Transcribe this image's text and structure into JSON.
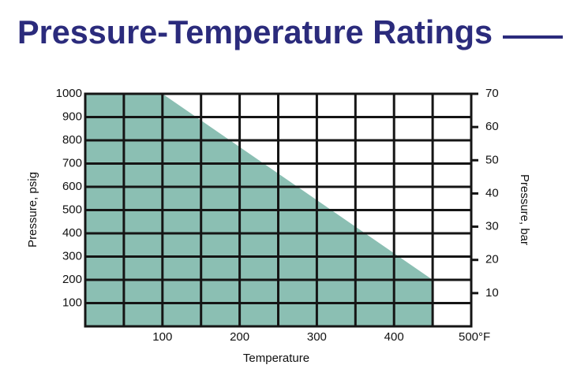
{
  "chart_data": {
    "type": "area",
    "title": "Pressure-Temperature Ratings",
    "x_label": "Temperature",
    "y_label": "Pressure, psig",
    "y2_label": "Pressure, bar",
    "series": [
      {
        "color": "#8bbfb3",
        "x": [
          0,
          100,
          450
        ],
        "values": [
          1000,
          1000,
          200
        ]
      }
    ],
    "xlim": [
      0,
      500
    ],
    "xticks": [
      100,
      200,
      300,
      400,
      {
        "value": 500,
        "label": "500°F"
      }
    ],
    "xgrid": [
      0,
      50,
      100,
      150,
      200,
      250,
      300,
      350,
      400,
      450,
      500
    ],
    "ylim": [
      0,
      1000
    ],
    "yticks": [
      100,
      200,
      300,
      400,
      500,
      600,
      700,
      800,
      900,
      1000
    ],
    "y2lim": [
      0,
      70
    ],
    "y2ticks": [
      10,
      20,
      30,
      40,
      50,
      60,
      70
    ],
    "grid": true
  }
}
